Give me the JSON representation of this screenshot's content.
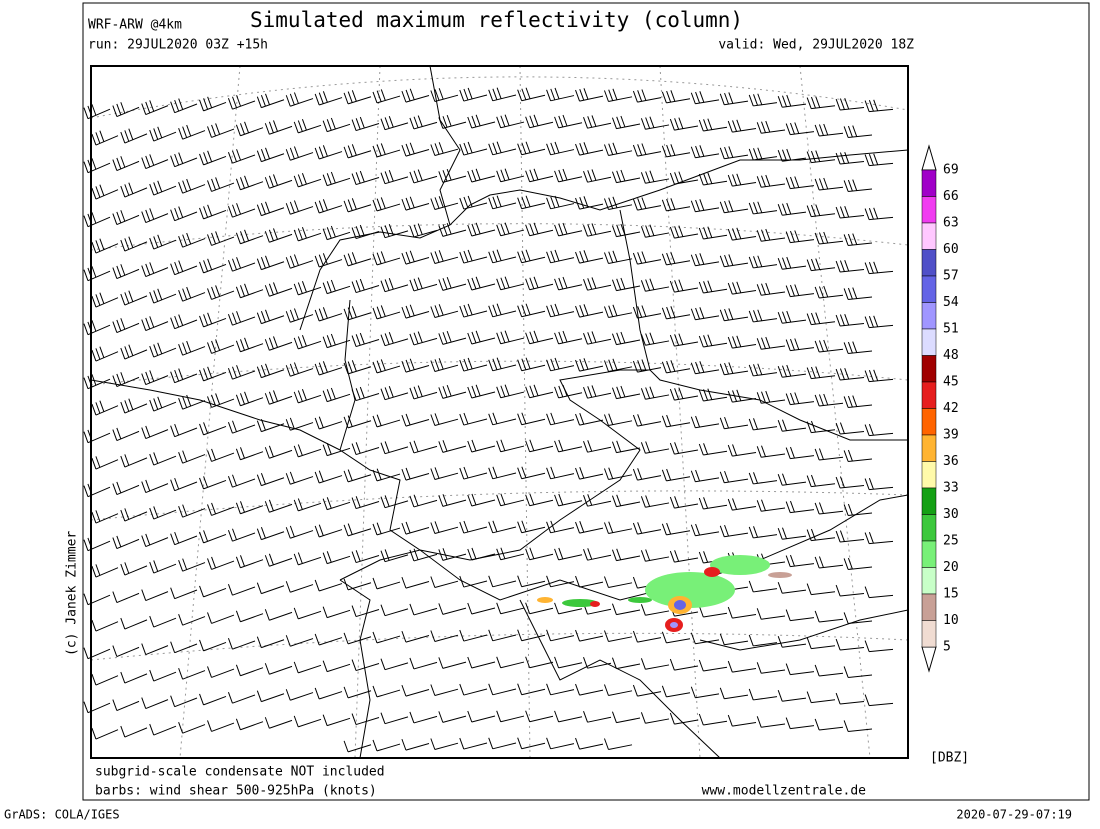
{
  "header": {
    "model": "WRF-ARW @4km",
    "title": "Simulated maximum reflectivity (column)",
    "run": "run: 29JUL2020 03Z +15h",
    "valid": "valid: Wed, 29JUL2020 18Z"
  },
  "copyright": "(c) Janek Zimmer",
  "footer": {
    "note": "subgrid-scale condensate NOT included",
    "barbs": "barbs: wind shear 500-925hPa (knots)",
    "site": "www.modellzentrale.de",
    "software": "GrADS: COLA/IGES",
    "timestamp": "2020-07-29-07:19"
  },
  "colorbar": {
    "unit": "[DBZ]",
    "levels": [
      69,
      66,
      63,
      60,
      57,
      54,
      51,
      48,
      45,
      42,
      39,
      36,
      33,
      30,
      25,
      20,
      15,
      10,
      5
    ],
    "colors": [
      "#a000c8",
      "#f03cf0",
      "#ffc8ff",
      "#5050c8",
      "#6464e6",
      "#a096ff",
      "#dcdcff",
      "#a00000",
      "#e61e1e",
      "#ff6400",
      "#ffb432",
      "#fffaaa",
      "#14a014",
      "#3cc83c",
      "#78f078",
      "#c8ffc8",
      "#c8a096",
      "#f0dcd2"
    ]
  }
}
